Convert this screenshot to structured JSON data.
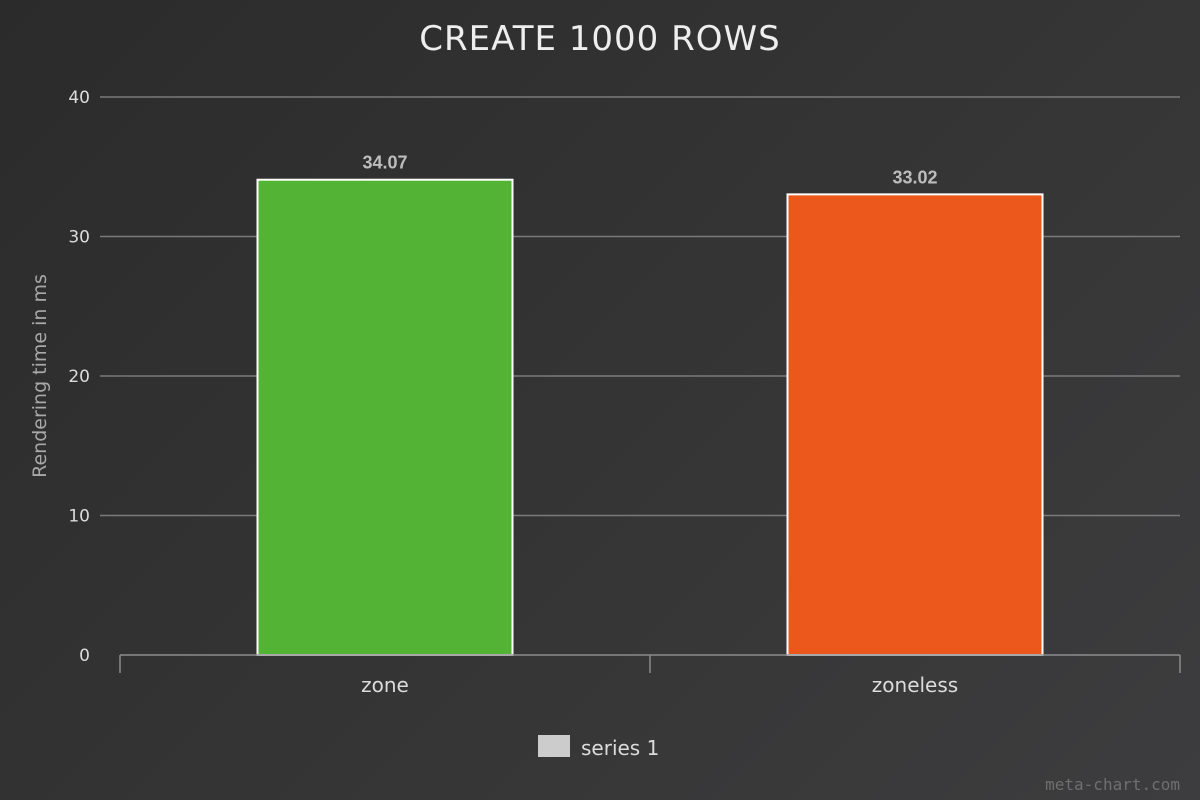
{
  "chart_data": {
    "type": "bar",
    "title": "CREATE 1000 ROWS",
    "ylabel": "Rendering time in ms",
    "xlabel": "",
    "categories": [
      "zone",
      "zoneless"
    ],
    "series": [
      {
        "name": "series 1",
        "values": [
          34.07,
          33.02
        ],
        "data_labels": [
          "34.07",
          "33.02"
        ]
      }
    ],
    "bar_colors": [
      "#52b334",
      "#ec581c"
    ],
    "ylim": [
      0,
      40
    ],
    "yticks": [
      0,
      10,
      20,
      30,
      40
    ],
    "ytick_labels": [
      "0",
      "10",
      "20",
      "30",
      "40"
    ],
    "grid": true,
    "legend_position": "bottom-center",
    "legend_color": "#cccccc"
  },
  "credit": "meta-chart.com"
}
